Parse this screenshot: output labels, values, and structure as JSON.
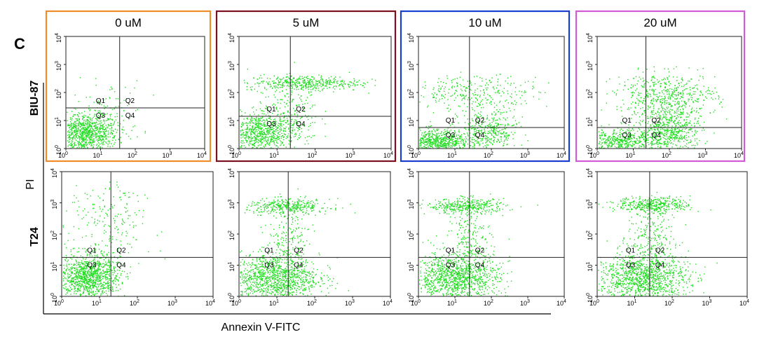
{
  "panel_letter": "C",
  "y_axis_label": "PI",
  "x_axis_label": "Annexin V-FITC",
  "row_labels": [
    "BIU-87",
    "T24"
  ],
  "column_titles": [
    "0 uM",
    "5 uM",
    "10 uM",
    "20 uM"
  ],
  "frame_colors": [
    "#f28c28",
    "#7a1020",
    "#1a3fcf",
    "#d35bd8"
  ],
  "dot_color": "#22dd22",
  "quadrant_labels": [
    "Q1",
    "Q2",
    "Q3",
    "Q4"
  ],
  "tick_labels": [
    "10",
    "10",
    "10",
    "10",
    "10"
  ],
  "tick_exponents": [
    "0",
    "1",
    "2",
    "3",
    "4"
  ],
  "chart_data": [
    {
      "type": "scatter",
      "row": "BIU-87",
      "title": "0 uM",
      "xlim": [
        0,
        4
      ],
      "ylim": [
        0,
        4
      ],
      "x_scale": "log",
      "y_scale": "log",
      "gate_x": 1.55,
      "gate_y": 1.45,
      "clusters": [
        {
          "x": 0.55,
          "y": 0.55,
          "sx": 0.45,
          "sy": 0.35,
          "n": 900
        },
        {
          "x": 1.2,
          "y": 1.2,
          "sx": 0.5,
          "sy": 0.6,
          "n": 120
        }
      ]
    },
    {
      "type": "scatter",
      "row": "BIU-87",
      "title": "5 uM",
      "xlim": [
        0,
        4
      ],
      "ylim": [
        0,
        4
      ],
      "x_scale": "log",
      "y_scale": "log",
      "gate_x": 1.35,
      "gate_y": 1.15,
      "clusters": [
        {
          "x": 0.55,
          "y": 0.55,
          "sx": 0.45,
          "sy": 0.35,
          "n": 750
        },
        {
          "x": 1.7,
          "y": 2.35,
          "sx": 0.75,
          "sy": 0.14,
          "n": 450
        },
        {
          "x": 1.3,
          "y": 1.3,
          "sx": 0.4,
          "sy": 0.5,
          "n": 200
        }
      ]
    },
    {
      "type": "scatter",
      "row": "BIU-87",
      "title": "10 uM",
      "xlim": [
        0,
        4
      ],
      "ylim": [
        0,
        4
      ],
      "x_scale": "log",
      "y_scale": "log",
      "gate_x": 1.4,
      "gate_y": 0.75,
      "clusters": [
        {
          "x": 0.5,
          "y": 0.25,
          "sx": 0.45,
          "sy": 0.22,
          "n": 700
        },
        {
          "x": 1.9,
          "y": 0.6,
          "sx": 0.4,
          "sy": 0.4,
          "n": 400
        },
        {
          "x": 1.6,
          "y": 2.0,
          "sx": 0.9,
          "sy": 0.3,
          "n": 300
        }
      ]
    },
    {
      "type": "scatter",
      "row": "BIU-87",
      "title": "20 uM",
      "xlim": [
        0,
        4
      ],
      "ylim": [
        0,
        4
      ],
      "x_scale": "log",
      "y_scale": "log",
      "gate_x": 1.35,
      "gate_y": 0.75,
      "clusters": [
        {
          "x": 0.6,
          "y": 0.25,
          "sx": 0.5,
          "sy": 0.22,
          "n": 500
        },
        {
          "x": 2.0,
          "y": 0.6,
          "sx": 0.45,
          "sy": 0.4,
          "n": 600
        },
        {
          "x": 1.9,
          "y": 1.9,
          "sx": 0.7,
          "sy": 0.4,
          "n": 550
        }
      ]
    },
    {
      "type": "scatter",
      "row": "T24",
      "title": "0 uM",
      "xlim": [
        0,
        4
      ],
      "ylim": [
        0,
        4
      ],
      "x_scale": "log",
      "y_scale": "log",
      "gate_x": 1.3,
      "gate_y": 1.25,
      "clusters": [
        {
          "x": 0.7,
          "y": 0.65,
          "sx": 0.4,
          "sy": 0.35,
          "n": 1100
        },
        {
          "x": 1.2,
          "y": 2.3,
          "sx": 0.5,
          "sy": 0.8,
          "n": 220
        }
      ]
    },
    {
      "type": "scatter",
      "row": "T24",
      "title": "5 uM",
      "xlim": [
        0,
        4
      ],
      "ylim": [
        0,
        4
      ],
      "x_scale": "log",
      "y_scale": "log",
      "gate_x": 1.3,
      "gate_y": 1.25,
      "clusters": [
        {
          "x": 0.9,
          "y": 0.6,
          "sx": 0.6,
          "sy": 0.4,
          "n": 1200
        },
        {
          "x": 1.3,
          "y": 2.9,
          "sx": 0.55,
          "sy": 0.12,
          "n": 350
        },
        {
          "x": 1.3,
          "y": 1.8,
          "sx": 0.3,
          "sy": 0.6,
          "n": 200
        }
      ]
    },
    {
      "type": "scatter",
      "row": "T24",
      "title": "10 uM",
      "xlim": [
        0,
        4
      ],
      "ylim": [
        0,
        4
      ],
      "x_scale": "log",
      "y_scale": "log",
      "gate_x": 1.4,
      "gate_y": 1.25,
      "clusters": [
        {
          "x": 1.0,
          "y": 0.6,
          "sx": 0.6,
          "sy": 0.4,
          "n": 1200
        },
        {
          "x": 1.3,
          "y": 2.9,
          "sx": 0.55,
          "sy": 0.12,
          "n": 350
        },
        {
          "x": 1.4,
          "y": 1.8,
          "sx": 0.3,
          "sy": 0.6,
          "n": 220
        }
      ]
    },
    {
      "type": "scatter",
      "row": "T24",
      "title": "20 uM",
      "xlim": [
        0,
        4
      ],
      "ylim": [
        0,
        4
      ],
      "x_scale": "log",
      "y_scale": "log",
      "gate_x": 1.4,
      "gate_y": 1.25,
      "clusters": [
        {
          "x": 1.2,
          "y": 0.6,
          "sx": 0.6,
          "sy": 0.4,
          "n": 1200
        },
        {
          "x": 1.5,
          "y": 2.95,
          "sx": 0.5,
          "sy": 0.12,
          "n": 380
        },
        {
          "x": 1.4,
          "y": 1.9,
          "sx": 0.3,
          "sy": 0.6,
          "n": 240
        }
      ]
    }
  ]
}
